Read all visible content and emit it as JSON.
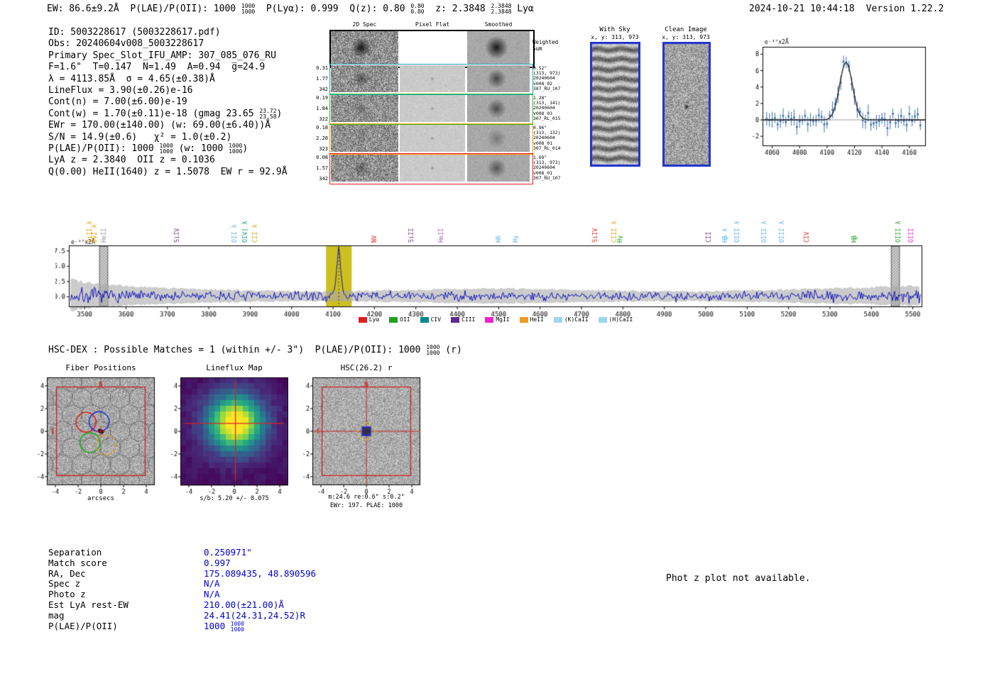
{
  "header": {
    "segments": [
      {
        "t": "EW: 86.6±9.2Å  P(LAE)/P(OII): 1000 "
      },
      {
        "f": [
          "1000",
          "1000"
        ]
      },
      {
        "t": "  P(Lyα): 0.999  Q(z): 0.80 "
      },
      {
        "f": [
          "0.80",
          "0.80"
        ]
      },
      {
        "t": "  z: 2.3848 "
      },
      {
        "f": [
          "2.3848",
          "2.3848"
        ]
      },
      {
        "t": " Lyα"
      }
    ],
    "timestamp": "2024-10-21 10:44:18",
    "version": "Version 1.22.2"
  },
  "info_block": {
    "lines": [
      [
        {
          "t": "ID: 5003228617 (5003228617.pdf)"
        }
      ],
      [
        {
          "t": "Obs: 20240604v008_5003228617"
        }
      ],
      [
        {
          "t": "Primary Spec_Slot_IFU_AMP: 307_085_076_RU"
        }
      ],
      [
        {
          "t": "F=1.6\"  T=0.147  N=1.49  A=0.94  g̅=24.9"
        }
      ],
      [
        {
          "t": "λ = 4113.85Å  σ = 4.65(±0.38)Å"
        }
      ],
      [
        {
          "t": "LineFlux = 3.90(±0.26)e-16"
        }
      ],
      [
        {
          "t": "Cont(n) = 7.00(±6.00)e-19"
        }
      ],
      [
        {
          "t": "Cont(w) = 1.70(±0.11)e-18 (gmag 23.65 "
        },
        {
          "f": [
            "23.72",
            "23.58"
          ]
        },
        {
          "t": ")"
        }
      ],
      [
        {
          "t": "EWr = 170.00(±140.00) (w: 69.00(±6.40))Å"
        }
      ],
      [
        {
          "t": "S/N = 14.9(±0.6)   χ² = 1.0(±0.2)"
        }
      ],
      [
        {
          "t": "P(LAE)/P(OII): 1000 "
        },
        {
          "f": [
            "1000",
            "1000"
          ]
        },
        {
          "t": " (w: 1000 "
        },
        {
          "f": [
            "1000",
            "1000"
          ]
        },
        {
          "t": ")"
        }
      ],
      [
        {
          "t": "LyA z = 2.3840  OII z = 0.1036"
        }
      ],
      [
        {
          "t": "Q(0.00) HeII(1640) z = 1.5078  EW r = 92.9Å"
        }
      ]
    ]
  },
  "cutouts": {
    "column_titles": [
      "2D Spec",
      "Pixel Flat",
      "Smoothed"
    ],
    "weighted_sum_label": [
      "Weighted",
      "Sum"
    ],
    "rows": [
      {
        "border": "#000000",
        "left": [],
        "right": []
      },
      {
        "border": "#1fa8a8",
        "left": [
          "0.31",
          "1.77",
          "342"
        ],
        "right": [
          "0.52\"",
          "(313, 973)",
          "20240604",
          "v008_02",
          "307_RU_107"
        ]
      },
      {
        "border": "#2dbb2d",
        "left": [
          "0.19",
          "1.84",
          "322"
        ],
        "right": [
          "1.28\"",
          "(313, 141)",
          "20240604",
          "v008_03",
          "307_RL_015"
        ]
      },
      {
        "border": "#ff9a00",
        "left": [
          "0.18",
          "2.28",
          "323"
        ],
        "right": [
          "0.96\"",
          "(313, 132)",
          "20240604",
          "v008_01",
          "307_RL_014"
        ]
      },
      {
        "border": "#e82222",
        "left": [
          "0.08",
          "1.57",
          "342"
        ],
        "right": [
          "1.69\"",
          "(313, 973)",
          "20240604",
          "v008_01",
          "307_RU_107"
        ]
      }
    ]
  },
  "sky_panels": {
    "with_sky": {
      "title": "With Sky",
      "subtitle": "x, y: 313, 973",
      "border_color": "#2233cc"
    },
    "clean_image": {
      "title": "Clean Image",
      "subtitle": "x, y: 313, 973",
      "border_color": "#2233cc"
    }
  },
  "hscdex": {
    "segments": [
      {
        "t": "HSC-DEX : Possible Matches = 1 (within +/- 3\")  P(LAE)/P(OII): 1000 "
      },
      {
        "f": [
          "1000",
          "1000"
        ]
      },
      {
        "t": " (r)"
      }
    ]
  },
  "panels": {
    "fiber": {
      "title": "Fiber Positions",
      "xlabel": "arcsecs",
      "ticks": [
        -4,
        -2,
        0,
        2,
        4
      ],
      "compass_n": "N",
      "compass_e": "E",
      "ifu_half_arcsec": 3.9,
      "selected_fibers": [
        {
          "dx": -1.3,
          "dy": 0.8,
          "color": "#dd2222",
          "dashed": false
        },
        {
          "dx": -0.15,
          "dy": 0.85,
          "color": "#2233cc",
          "dashed": false
        },
        {
          "dx": -0.95,
          "dy": -1.0,
          "color": "#22aa22",
          "dashed": false
        },
        {
          "dx": 0.45,
          "dy": -1.2,
          "color": "#e0a020",
          "dashed": true
        }
      ]
    },
    "lineflux": {
      "title": "Lineflux Map",
      "caption": "s/b: 5.20 +/- 0.075",
      "ticks": [
        -4,
        -2,
        0,
        2,
        4
      ]
    },
    "hsc": {
      "title": "HSC(26.2) r",
      "caption1": "m:24.6 re:0.6\" s:0.2\"",
      "caption2": "EWr: 197. PLAE: 1000",
      "ticks": [
        -4,
        -2,
        0,
        2,
        4
      ],
      "compass_n": "N",
      "compass_e": "E",
      "ifu_half_arcsec": 3.9,
      "aperture_color": "#d4c520",
      "marker_color": "#2233cc"
    }
  },
  "match_table": {
    "value_color": "#0000cc",
    "rows": [
      {
        "label": "Separation",
        "value": [
          {
            "t": "0.250971\""
          }
        ]
      },
      {
        "label": "Match score",
        "value": [
          {
            "t": "0.997"
          }
        ]
      },
      {
        "label": "RA, Dec",
        "value": [
          {
            "t": "175.089435, 48.890596"
          }
        ]
      },
      {
        "label": "Spec z",
        "value": [
          {
            "t": "N/A"
          }
        ]
      },
      {
        "label": "Photo z",
        "value": [
          {
            "t": "N/A"
          }
        ]
      },
      {
        "label": "Est LyA rest-EW",
        "value": [
          {
            "t": "210.00(±21.00)Å"
          }
        ]
      },
      {
        "label": "mag",
        "value": [
          {
            "t": "24.41(24.31,24.52)R"
          }
        ]
      },
      {
        "label": "P(LAE)/P(OII)",
        "value": [
          {
            "t": "1000 "
          },
          {
            "f": [
              "1000",
              "1000"
            ]
          }
        ]
      }
    ]
  },
  "footer": {
    "photz_note": "Phot z plot not available."
  },
  "chart_data": [
    {
      "id": "line_fit_zoom",
      "type": "scatter",
      "unit_label": "e⁻¹⁷x2Å",
      "x_ticks": [
        4060,
        4080,
        4100,
        4120,
        4140,
        4160
      ],
      "x_range": [
        4053,
        4172
      ],
      "y_ticks": [
        -2,
        0,
        2,
        4,
        6,
        8
      ],
      "y_range": [
        -3.2,
        8.9
      ],
      "gaussian_fit": {
        "center": 4113.85,
        "sigma": 4.65,
        "amplitude": 7.0
      },
      "noise_sigma": 0.85,
      "point_color": "#3b6fae",
      "errbar_color": "#3b6fae",
      "fit_color": "#1a1a1a"
    },
    {
      "id": "full_spectrum",
      "type": "line",
      "unit_label": "e⁻¹⁷x2Å",
      "x_ticks": [
        3500,
        3600,
        3700,
        3800,
        3900,
        4000,
        4100,
        4200,
        4300,
        4400,
        4500,
        4600,
        4700,
        4800,
        4900,
        5000,
        5100,
        5200,
        5300,
        5400,
        5500
      ],
      "x_range": [
        3462,
        5523
      ],
      "y_ticks": [
        0.0,
        2.5,
        5.0,
        7.5
      ],
      "y_range": [
        -1.7,
        8.4
      ],
      "emission_line": {
        "center": 4113.85,
        "sigma": 5.0,
        "amplitude": 7.4
      },
      "highlight_band": {
        "from": 4083,
        "to": 4145,
        "color": "#cdbf1e"
      },
      "masked_bands": [
        {
          "from": 3536,
          "to": 3556
        },
        {
          "from": 5448,
          "to": 5468
        }
      ],
      "spectrum_color": "#0000bb",
      "error_band_color": "#a8a8a8",
      "line_labels": [
        {
          "wave": 3512,
          "text": "SiII λ",
          "color": "#e69f00"
        },
        {
          "wave": 3524,
          "text": "OVI λ",
          "color": "#e69f00"
        },
        {
          "wave": 3546,
          "text": "HeII",
          "color": "#999999"
        },
        {
          "wave": 3723,
          "text": "SiIV",
          "color": "#7b2d8b"
        },
        {
          "wave": 3862,
          "text": "OII λ",
          "color": "#56b4e9"
        },
        {
          "wave": 3888,
          "text": "OIV] λ",
          "color": "#009e73"
        },
        {
          "wave": 3912,
          "text": "CII λ",
          "color": "#d4a017"
        },
        {
          "wave": 4199,
          "text": "NV",
          "color": "#dd2222"
        },
        {
          "wave": 4288,
          "text": "SiII",
          "color": "#7b2d8b"
        },
        {
          "wave": 4360,
          "text": "HeII",
          "color": "#b05fc9"
        },
        {
          "wave": 4500,
          "text": "Hδ",
          "color": "#56b4e9"
        },
        {
          "wave": 4540,
          "text": "Hγ",
          "color": "#56b4e9"
        },
        {
          "wave": 4732,
          "text": "SiIV",
          "color": "#dd2222"
        },
        {
          "wave": 4779,
          "text": "CIII λ",
          "color": "#e69f00"
        },
        {
          "wave": 4792,
          "text": "Hγ",
          "color": "#1fa11f"
        },
        {
          "wave": 5007,
          "text": "CII",
          "color": "#7b2d8b"
        },
        {
          "wave": 5046,
          "text": "Hβ λ",
          "color": "#56b4e9"
        },
        {
          "wave": 5076,
          "text": "OIII λ",
          "color": "#56b4e9"
        },
        {
          "wave": 5140,
          "text": "OIII λ",
          "color": "#56b4e9"
        },
        {
          "wave": 5184,
          "text": "OIII λ",
          "color": "#56b4e9"
        },
        {
          "wave": 5243,
          "text": "CIV",
          "color": "#dd2222"
        },
        {
          "wave": 5359,
          "text": "Hβ",
          "color": "#1fa11f"
        },
        {
          "wave": 5465,
          "text": "OIII λ",
          "color": "#1fa11f"
        },
        {
          "wave": 5496,
          "text": "OIII",
          "color": "#ee22cc"
        }
      ],
      "legend": [
        {
          "label": "Lyα",
          "color": "#e02020"
        },
        {
          "label": "OII",
          "color": "#1fa11f"
        },
        {
          "label": "CIV",
          "color": "#008b8b"
        },
        {
          "label": "CIII",
          "color": "#5b2a8e"
        },
        {
          "label": "MgII",
          "color": "#ee22cc"
        },
        {
          "label": "HeII",
          "color": "#ee9922"
        },
        {
          "label": "(K)CaII",
          "color": "#9fd5ee"
        },
        {
          "label": "(H)CaII",
          "color": "#9fd5ee"
        }
      ]
    }
  ]
}
